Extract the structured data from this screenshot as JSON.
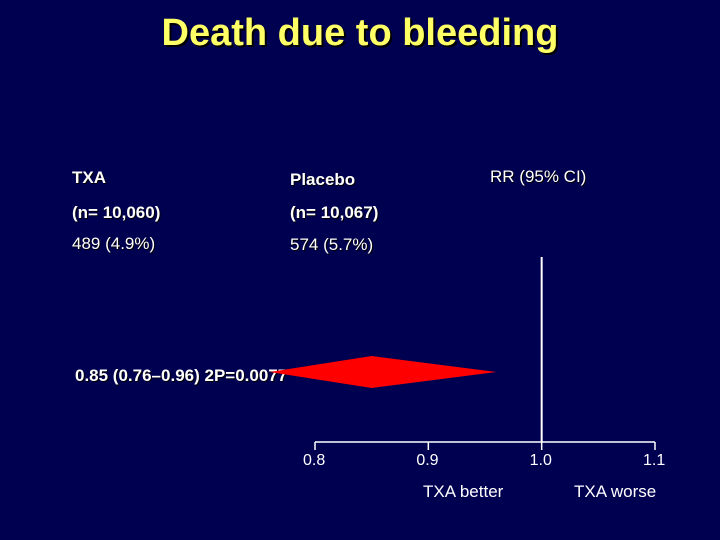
{
  "title": "Death due to bleeding",
  "headers": {
    "txa": "TXA",
    "placebo": "Placebo",
    "rr": "RR (95% CI)"
  },
  "n": {
    "txa": "(n= 10,060)",
    "placebo": "(n= 10,067)"
  },
  "events": {
    "txa": "489 (4.9%)",
    "placebo": "574 (5.7%)"
  },
  "result_text": "0.85 (0.76–0.96) 2P=0.0077",
  "direction": {
    "left": "TXA better",
    "right": "TXA worse"
  },
  "colors": {
    "background": "#000050",
    "title": "#ffff66",
    "diamond": "#ff0000"
  },
  "chart_data": {
    "type": "forest",
    "estimate": 0.85,
    "ci": [
      0.76,
      0.96
    ],
    "p_value": "2P=0.0077",
    "reference_line": 1.0,
    "xlim": [
      0.8,
      1.1
    ],
    "ticks": [
      {
        "value": 0.8,
        "label": "0.8"
      },
      {
        "value": 0.9,
        "label": "0.9"
      },
      {
        "value": 1.0,
        "label": "1.0"
      },
      {
        "value": 1.1,
        "label": "1.1"
      }
    ]
  }
}
